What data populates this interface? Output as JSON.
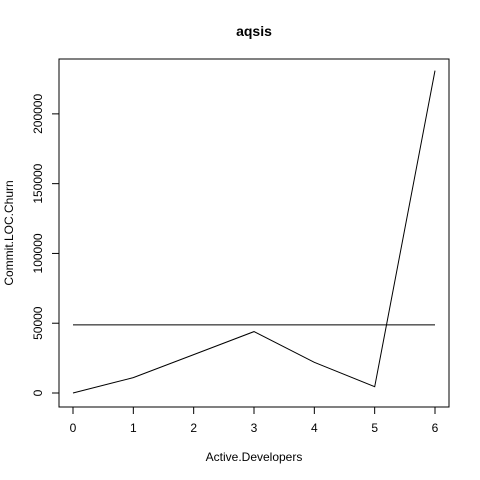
{
  "chart_data": {
    "type": "line",
    "title": "aqsis",
    "xlabel": "Active.Developers",
    "ylabel": "Commit.LOC.Churn",
    "xlim": [
      0,
      6
    ],
    "ylim": [
      0,
      230000
    ],
    "x_ticks": [
      0,
      1,
      2,
      3,
      4,
      5,
      6
    ],
    "x_tick_labels": [
      "0",
      "1",
      "2",
      "3",
      "4",
      "5",
      "6"
    ],
    "y_ticks": [
      0,
      50000,
      100000,
      150000,
      200000
    ],
    "y_tick_labels": [
      "0",
      "50000",
      "100000",
      "150000",
      "200000"
    ],
    "grid": false,
    "legend": "none",
    "series": [
      {
        "x": [
          0,
          1,
          2,
          3,
          4,
          5,
          6
        ],
        "values": [
          0,
          11000,
          27500,
          44000,
          22000,
          4500,
          231000
        ]
      },
      {
        "x": [
          0,
          6
        ],
        "values": [
          48800,
          48800
        ]
      }
    ],
    "line_color": "#000000"
  }
}
